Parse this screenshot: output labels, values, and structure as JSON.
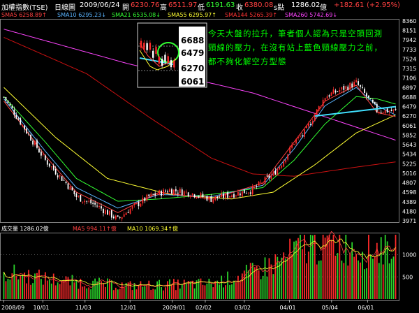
{
  "header": {
    "title": "加權指數(TSE)",
    "period": "日線圖",
    "date": "2009/06/24",
    "open_label": "開",
    "open": "6230.76",
    "high_label": "高",
    "high": "6511.97",
    "low_label": "低",
    "low": "6191.63",
    "close_label": "收",
    "close": "6380.08",
    "unit": "s點",
    "volume": "1286.02",
    "volume_unit": "億",
    "change": "+182.61",
    "change_pct": "(+2.95%)"
  },
  "ma_legend": [
    {
      "label": "SMA5",
      "value": "6258.89",
      "arrow": "↑",
      "color": "#ff4040"
    },
    {
      "label": "SMA10",
      "value": "6295.23",
      "arrow": "↓",
      "color": "#5ab4ff"
    },
    {
      "label": "SMA21",
      "value": "6535.08",
      "arrow": "↓",
      "color": "#33ff33"
    },
    {
      "label": "SMA55",
      "value": "6295.97",
      "arrow": "↑",
      "color": "#ffff33"
    },
    {
      "label": "SMA144",
      "value": "5265.39",
      "arrow": "↑",
      "color": "#ff3333"
    },
    {
      "label": "SMA260",
      "value": "5742.69",
      "arrow": "↓",
      "color": "#ff44ff"
    }
  ],
  "inset": {
    "levels": [
      "6688",
      "6479",
      "6270",
      "6061"
    ]
  },
  "commentary": "今天大盤的拉升，筆者個人認為只是空頭回測頸線的壓力，在沒有站上藍色頸線壓力之前，都不夠化解空方型態",
  "volume_panel": {
    "label": "成交量",
    "value": "1286.02",
    "unit": "億",
    "ma5_label": "MA5",
    "ma5_value": "994.11",
    "ma5_arrow": "↑",
    "ma10_label": "MA10",
    "ma10_value": "1069.34",
    "ma10_arrow": "↑"
  },
  "chart_data": {
    "type": "candlestick",
    "price_ticks": [
      "8360",
      "8151",
      "7942",
      "7733",
      "7524",
      "7315",
      "7106",
      "6897",
      "6688",
      "6479",
      "6270",
      "6061",
      "5852",
      "5643",
      "5434",
      "5225",
      "5016",
      "4807",
      "4598",
      "4389",
      "4180",
      "3971"
    ],
    "volume_ticks": [
      "1000",
      "500"
    ],
    "x_ticks": [
      "2008/09",
      "10/01",
      "11/03",
      "12/01",
      "2009/01",
      "02/02",
      "03/02",
      "04/01",
      "05/04",
      "06/01"
    ],
    "price_range": [
      3971,
      8360
    ],
    "volume_range": [
      0,
      1450
    ],
    "sessions": 190,
    "price_path_anchors": [
      [
        0,
        6688
      ],
      [
        10,
        6000
      ],
      [
        20,
        5300
      ],
      [
        30,
        4800
      ],
      [
        35,
        4500
      ],
      [
        45,
        4300
      ],
      [
        55,
        4000
      ],
      [
        60,
        4200
      ],
      [
        70,
        4500
      ],
      [
        80,
        4650
      ],
      [
        90,
        4580
      ],
      [
        100,
        4450
      ],
      [
        110,
        4550
      ],
      [
        120,
        4650
      ],
      [
        130,
        5000
      ],
      [
        135,
        5300
      ],
      [
        140,
        5700
      ],
      [
        145,
        5900
      ],
      [
        150,
        6300
      ],
      [
        155,
        6700
      ],
      [
        160,
        6800
      ],
      [
        165,
        6900
      ],
      [
        170,
        7000
      ],
      [
        175,
        6700
      ],
      [
        180,
        6400
      ],
      [
        189,
        6380
      ]
    ],
    "volume_path_anchors": [
      [
        0,
        600
      ],
      [
        30,
        400
      ],
      [
        60,
        300
      ],
      [
        100,
        350
      ],
      [
        120,
        600
      ],
      [
        135,
        900
      ],
      [
        145,
        1200
      ],
      [
        160,
        1300
      ],
      [
        175,
        1100
      ],
      [
        189,
        1286
      ]
    ],
    "ma_series": [
      {
        "name": "SMA260",
        "color": "#ff44ff",
        "anchors": [
          [
            0,
            8180
          ],
          [
            60,
            7420
          ],
          [
            120,
            6780
          ],
          [
            189,
            5742
          ]
        ]
      },
      {
        "name": "SMA144",
        "color": "#cc1111",
        "anchors": [
          [
            0,
            8000
          ],
          [
            40,
            7200
          ],
          [
            70,
            6250
          ],
          [
            100,
            5350
          ],
          [
            120,
            5000
          ],
          [
            140,
            4950
          ],
          [
            170,
            5150
          ],
          [
            189,
            5265
          ]
        ]
      },
      {
        "name": "SMA55",
        "color": "#ffff33",
        "anchors": [
          [
            0,
            6900
          ],
          [
            25,
            5800
          ],
          [
            50,
            4900
          ],
          [
            80,
            4550
          ],
          [
            110,
            4450
          ],
          [
            130,
            4600
          ],
          [
            150,
            5200
          ],
          [
            170,
            5900
          ],
          [
            189,
            6296
          ]
        ]
      },
      {
        "name": "SMA21",
        "color": "#33ff33",
        "anchors": [
          [
            0,
            6700
          ],
          [
            20,
            5700
          ],
          [
            35,
            4900
          ],
          [
            55,
            4400
          ],
          [
            75,
            4450
          ],
          [
            100,
            4550
          ],
          [
            125,
            4700
          ],
          [
            140,
            5300
          ],
          [
            155,
            6100
          ],
          [
            170,
            6700
          ],
          [
            180,
            6650
          ],
          [
            189,
            6535
          ]
        ]
      },
      {
        "name": "SMA10",
        "color": "#5ab4ff",
        "anchors": [
          [
            0,
            6650
          ],
          [
            20,
            5500
          ],
          [
            35,
            4700
          ],
          [
            55,
            4250
          ],
          [
            75,
            4550
          ],
          [
            100,
            4500
          ],
          [
            125,
            4750
          ],
          [
            140,
            5550
          ],
          [
            155,
            6500
          ],
          [
            170,
            6900
          ],
          [
            180,
            6500
          ],
          [
            189,
            6295
          ]
        ]
      },
      {
        "name": "SMA5",
        "color": "#ff4040",
        "anchors": [
          [
            0,
            6600
          ],
          [
            20,
            5400
          ],
          [
            35,
            4600
          ],
          [
            55,
            4150
          ],
          [
            75,
            4600
          ],
          [
            100,
            4450
          ],
          [
            125,
            4800
          ],
          [
            140,
            5700
          ],
          [
            155,
            6600
          ],
          [
            170,
            6950
          ],
          [
            180,
            6350
          ],
          [
            189,
            6259
          ]
        ]
      }
    ],
    "neckline": {
      "color": "#40e0ff",
      "from": [
        150,
        6270
      ],
      "to": [
        189,
        6479
      ]
    }
  }
}
